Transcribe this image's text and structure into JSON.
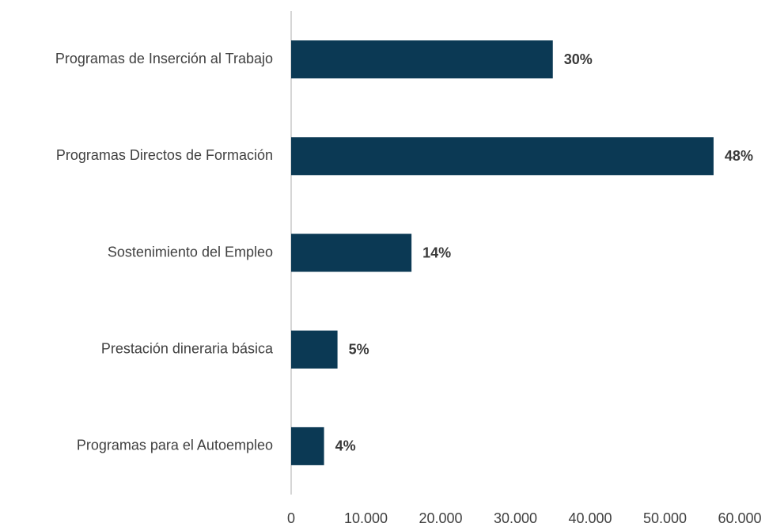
{
  "chart_data": {
    "type": "barh",
    "categories": [
      "Programas de Inserción al Trabajo",
      "Programas Directos de Formación",
      "Sostenimiento del Empleo",
      "Prestación dineraria básica",
      "Programas para el Autoempleo"
    ],
    "values": [
      35000,
      56500,
      16100,
      6200,
      4400
    ],
    "value_labels": [
      "30%",
      "48%",
      "14%",
      "5%",
      "4%"
    ],
    "color": "#0b3954",
    "xlim": [
      0,
      60000
    ],
    "xticks": [
      0,
      {
        "value": 10000,
        "label": "10.000"
      },
      {
        "value": 20000,
        "label": "20.000"
      },
      {
        "value": 30000,
        "label": "30.000"
      },
      {
        "value": 40000,
        "label": "40.000"
      },
      {
        "value": 50000,
        "label": "50.000"
      },
      {
        "value": 60000,
        "label": "60.000"
      }
    ],
    "grid": false
  }
}
